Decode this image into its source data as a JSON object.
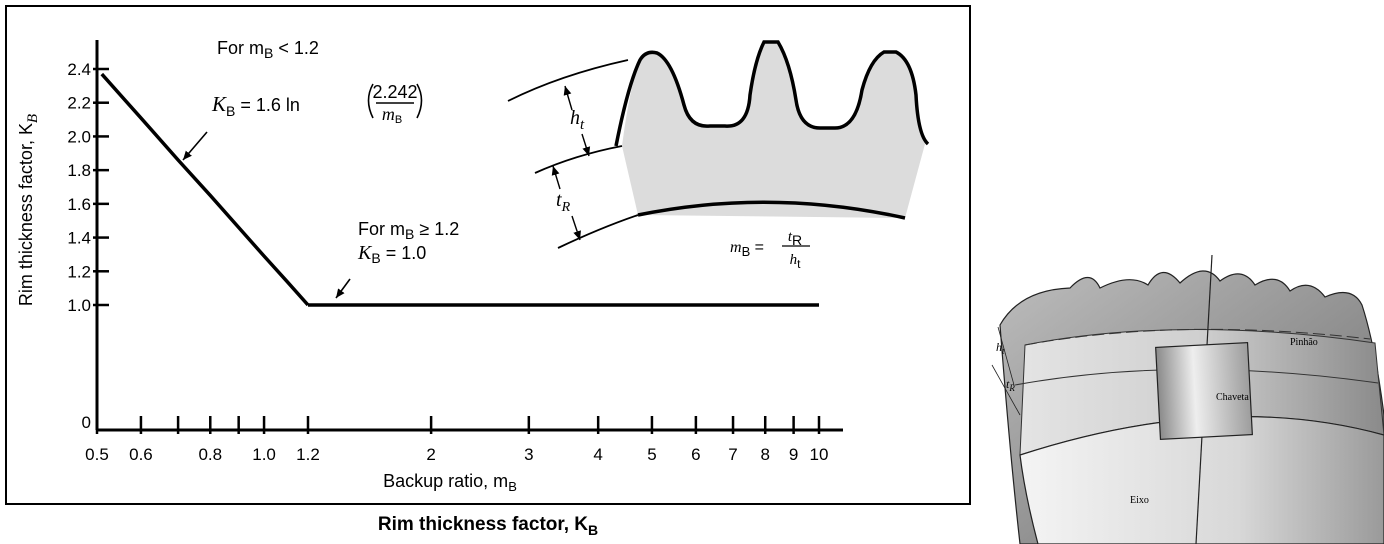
{
  "chart_data": {
    "type": "line",
    "title": "Rim thickness factor, K",
    "title_sub": "B",
    "xlabel": "Backup ratio, m",
    "xlabel_sub": "B",
    "ylabel": "Rim thickness factor, K",
    "ylabel_sub": "B",
    "x_scale": "log",
    "xlim": [
      0.5,
      10
    ],
    "ylim": [
      0,
      2.4
    ],
    "x_ticks": [
      {
        "value": 0.5,
        "label": "0.5"
      },
      {
        "value": 0.6,
        "label": "0.6"
      },
      {
        "value": 0.7,
        "label": ""
      },
      {
        "value": 0.8,
        "label": "0.8"
      },
      {
        "value": 0.9,
        "label": ""
      },
      {
        "value": 1.0,
        "label": "1.0"
      },
      {
        "value": 1.2,
        "label": "1.2"
      },
      {
        "value": 2,
        "label": "2"
      },
      {
        "value": 3,
        "label": "3"
      },
      {
        "value": 4,
        "label": "4"
      },
      {
        "value": 5,
        "label": "5"
      },
      {
        "value": 6,
        "label": "6"
      },
      {
        "value": 7,
        "label": "7"
      },
      {
        "value": 8,
        "label": "8"
      },
      {
        "value": 9,
        "label": "9"
      },
      {
        "value": 10,
        "label": "10"
      }
    ],
    "y_ticks": [
      {
        "value": 1.0,
        "label": "1.0"
      },
      {
        "value": 1.2,
        "label": "1.2"
      },
      {
        "value": 1.4,
        "label": "1.4"
      },
      {
        "value": 1.6,
        "label": "1.6"
      },
      {
        "value": 1.8,
        "label": "1.8"
      },
      {
        "value": 2.0,
        "label": "2.0"
      },
      {
        "value": 2.2,
        "label": "2.2"
      },
      {
        "value": 2.4,
        "label": "2.4"
      }
    ],
    "y_zero_label": "0",
    "series": [
      {
        "x": [
          0.51,
          0.6,
          0.7,
          0.8,
          0.9,
          1.0,
          1.1,
          1.2
        ],
        "y": [
          2.37,
          2.11,
          1.86,
          1.65,
          1.46,
          1.29,
          1.14,
          1.0
        ]
      },
      {
        "x": [
          1.2,
          10
        ],
        "y": [
          1.0,
          1.0
        ]
      }
    ],
    "annotations": {
      "left": {
        "line1": "For m",
        "line1_sub": "B",
        "line1_rest": " < 1.2",
        "lhs": "K",
        "lhs_sub": "B",
        "eq": " =  1.6  ln ",
        "frac_num": "2.242",
        "frac_den": "m",
        "frac_den_sub": "B"
      },
      "right": {
        "line1": "For m",
        "line1_sub": "B",
        "line1_rest": " ≥ 1.2",
        "line2": "K",
        "line2_sub": "B",
        "line2_rest": " = 1.0"
      }
    },
    "inset": {
      "ht": "h",
      "ht_sub": "t",
      "tr": "t",
      "tr_sub": "R",
      "mb": "m",
      "mb_sub": "B",
      "mb_eq": " = ",
      "num": "t",
      "num_sub": "R",
      "den": "h",
      "den_sub": "t"
    },
    "grid": false,
    "legend": "none"
  },
  "photo": {
    "pinhao": "Pinhão",
    "chaveta": "Chaveta",
    "eixo": "Eixo",
    "ht": "h",
    "ht_sub": "t",
    "tr": "t",
    "tr_sub": "R"
  },
  "colors": {
    "line": "#000000",
    "rim_fill": "#dcdcdc"
  }
}
